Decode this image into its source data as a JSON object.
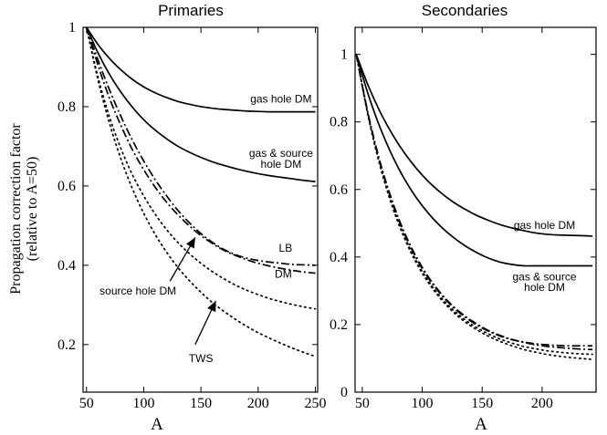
{
  "chart_data": [
    {
      "type": "line",
      "title": "Primaries",
      "xlabel": "A",
      "ylabel": "Propagation correction factor",
      "ylabel2": "(relative to A=50)",
      "xlim": [
        47,
        252
      ],
      "ylim": [
        0.08,
        1.0
      ],
      "xticks": [
        50,
        100,
        150,
        200,
        250
      ],
      "yticks": [
        0.2,
        0.4,
        0.6,
        0.8,
        1
      ],
      "xticklabels": [
        "50",
        "100",
        "150",
        "200",
        "250"
      ],
      "yticklabels": [
        "0.2",
        "0.4",
        "0.6",
        "0.8",
        "1"
      ],
      "grid": false,
      "x": [
        50,
        60,
        70,
        80,
        90,
        100,
        110,
        120,
        130,
        140,
        150,
        160,
        170,
        180,
        190,
        200,
        210,
        220,
        230,
        240,
        250
      ],
      "series": [
        {
          "dash": "solid",
          "values": [
            1.0,
            0.957,
            0.922,
            0.893,
            0.869,
            0.85,
            0.835,
            0.823,
            0.813,
            0.806,
            0.8,
            0.796,
            0.793,
            0.791,
            0.789,
            0.788,
            0.787,
            0.787,
            0.787,
            0.787,
            0.787
          ]
        },
        {
          "dash": "solid",
          "values": [
            1.0,
            0.936,
            0.882,
            0.837,
            0.799,
            0.767,
            0.741,
            0.719,
            0.7,
            0.685,
            0.672,
            0.661,
            0.652,
            0.644,
            0.637,
            0.631,
            0.626,
            0.622,
            0.618,
            0.614,
            0.611
          ]
        },
        {
          "dash": "dashdot",
          "values": [
            1.0,
            0.905,
            0.822,
            0.753,
            0.692,
            0.641,
            0.597,
            0.559,
            0.527,
            0.499,
            0.475,
            0.455,
            0.438,
            0.425,
            0.414,
            0.405,
            0.398,
            0.392,
            0.387,
            0.383,
            0.38
          ]
        },
        {
          "dash": "dashdot",
          "values": [
            1.0,
            0.918,
            0.843,
            0.776,
            0.716,
            0.663,
            0.616,
            0.575,
            0.538,
            0.507,
            0.48,
            0.458,
            0.44,
            0.427,
            0.418,
            0.412,
            0.408,
            0.405,
            0.402,
            0.401,
            0.4
          ]
        },
        {
          "dash": "dotted",
          "values": [
            1.0,
            0.875,
            0.775,
            0.695,
            0.629,
            0.575,
            0.529,
            0.49,
            0.457,
            0.429,
            0.405,
            0.384,
            0.366,
            0.35,
            0.337,
            0.326,
            0.316,
            0.308,
            0.301,
            0.295,
            0.29
          ]
        },
        {
          "dash": "dotted",
          "values": [
            1.0,
            0.868,
            0.759,
            0.669,
            0.594,
            0.531,
            0.478,
            0.433,
            0.394,
            0.361,
            0.332,
            0.306,
            0.284,
            0.264,
            0.246,
            0.23,
            0.216,
            0.203,
            0.191,
            0.18,
            0.17
          ]
        }
      ],
      "annotations": [
        {
          "text": "gas hole DM",
          "x": 220,
          "y": 0.82
        },
        {
          "text": "gas & source",
          "x": 220,
          "y": 0.683
        },
        {
          "text": "hole DM",
          "x": 220,
          "y": 0.655
        },
        {
          "text": "LB",
          "x": 224,
          "y": 0.443
        },
        {
          "text": "DM",
          "x": 222,
          "y": 0.378
        },
        {
          "text": "source hole DM",
          "x": 95,
          "y": 0.335
        },
        {
          "text": "TWS",
          "x": 150,
          "y": 0.165
        }
      ],
      "arrows": [
        {
          "label": "source hole DM",
          "from": [
            123,
            0.36
          ],
          "to": [
            145,
            0.47
          ]
        },
        {
          "label": "TWS",
          "from": [
            145,
            0.2
          ],
          "to": [
            163,
            0.31
          ]
        }
      ]
    },
    {
      "type": "line",
      "title": "Secondaries",
      "xlabel": "A",
      "xlim": [
        44,
        245
      ],
      "ylim": [
        0.0,
        1.08
      ],
      "xticks": [
        50,
        100,
        150,
        200
      ],
      "yticks": [
        0,
        0.2,
        0.4,
        0.6,
        0.8,
        1
      ],
      "xticklabels": [
        "50",
        "100",
        "150",
        "200"
      ],
      "yticklabels": [
        "0",
        "0.2",
        "0.4",
        "0.6",
        "0.8",
        "1"
      ],
      "grid": false,
      "x": [
        45,
        55,
        65,
        75,
        85,
        95,
        105,
        115,
        125,
        135,
        145,
        155,
        165,
        175,
        185,
        195,
        205,
        215,
        225,
        235,
        242
      ],
      "series": [
        {
          "dash": "solid",
          "values": [
            1.0,
            0.907,
            0.829,
            0.764,
            0.709,
            0.663,
            0.624,
            0.592,
            0.565,
            0.543,
            0.524,
            0.509,
            0.496,
            0.486,
            0.478,
            0.471,
            0.467,
            0.465,
            0.464,
            0.463,
            0.462
          ]
        },
        {
          "dash": "solid",
          "values": [
            1.0,
            0.881,
            0.782,
            0.7,
            0.632,
            0.576,
            0.53,
            0.492,
            0.461,
            0.435,
            0.414,
            0.397,
            0.385,
            0.378,
            0.374,
            0.374,
            0.374,
            0.374,
            0.374,
            0.374,
            0.374
          ]
        },
        {
          "dash": "dashdot",
          "values": [
            1.0,
            0.823,
            0.68,
            0.566,
            0.474,
            0.401,
            0.342,
            0.295,
            0.257,
            0.227,
            0.203,
            0.183,
            0.168,
            0.156,
            0.147,
            0.14,
            0.135,
            0.132,
            0.129,
            0.127,
            0.126
          ]
        },
        {
          "dash": "dashdot",
          "values": [
            1.0,
            0.82,
            0.676,
            0.561,
            0.47,
            0.397,
            0.338,
            0.292,
            0.254,
            0.224,
            0.2,
            0.181,
            0.166,
            0.155,
            0.148,
            0.143,
            0.14,
            0.138,
            0.137,
            0.137,
            0.137
          ]
        },
        {
          "dash": "dotted",
          "values": [
            1.0,
            0.818,
            0.671,
            0.555,
            0.463,
            0.389,
            0.33,
            0.283,
            0.246,
            0.216,
            0.192,
            0.173,
            0.157,
            0.145,
            0.135,
            0.128,
            0.122,
            0.118,
            0.115,
            0.113,
            0.112
          ]
        },
        {
          "dash": "dotted",
          "values": [
            1.0,
            0.815,
            0.667,
            0.55,
            0.457,
            0.383,
            0.325,
            0.278,
            0.24,
            0.21,
            0.186,
            0.166,
            0.15,
            0.137,
            0.126,
            0.118,
            0.111,
            0.106,
            0.102,
            0.099,
            0.097
          ]
        }
      ],
      "annotations": [
        {
          "text": "gas hole DM",
          "x": 202,
          "y": 0.494
        },
        {
          "text": "gas & source",
          "x": 202,
          "y": 0.341
        },
        {
          "text": "hole DM",
          "x": 202,
          "y": 0.311
        }
      ],
      "arrows": []
    }
  ]
}
